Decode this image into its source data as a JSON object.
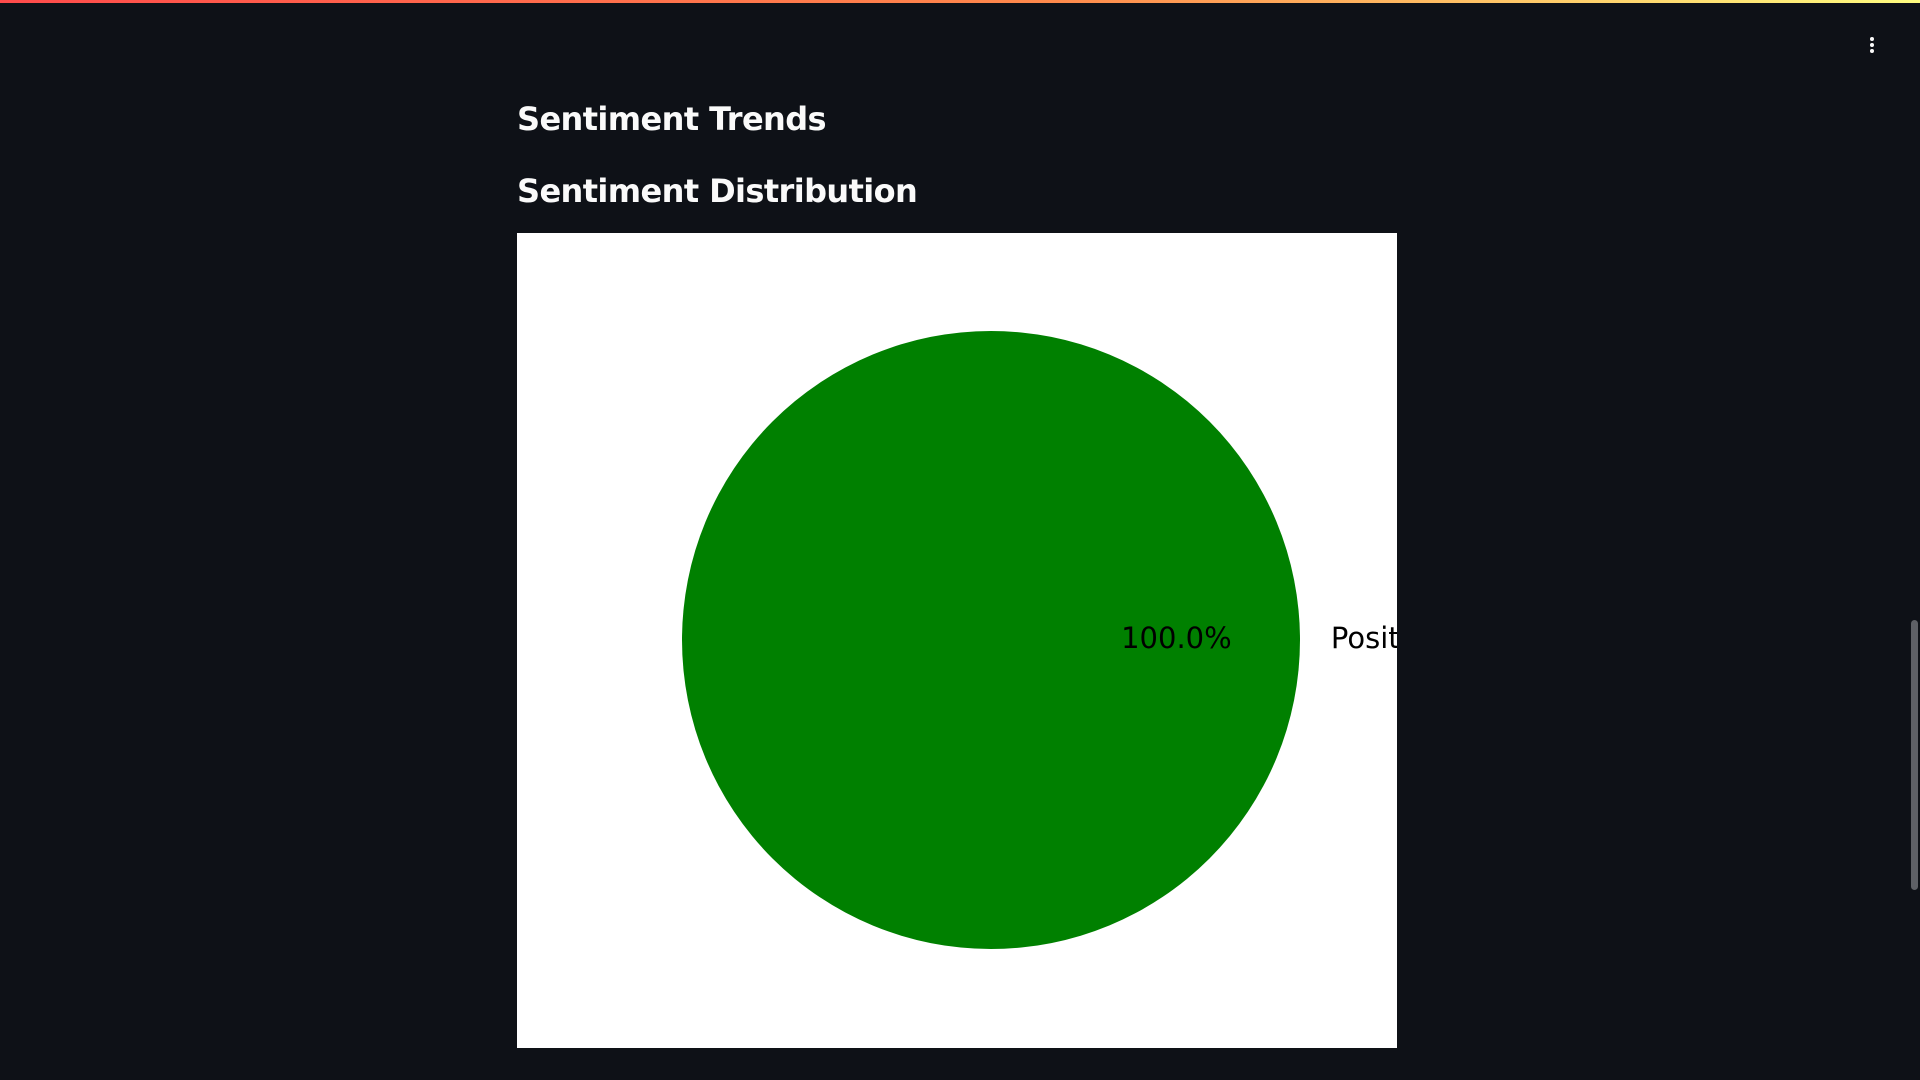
{
  "headings": {
    "trends": "Sentiment Trends",
    "distribution": "Sentiment Distribution"
  },
  "toolbar": {
    "menu_icon": "kebab-vertical-icon"
  },
  "theme": {
    "background": "#0e1117",
    "text": "#fafafa",
    "chart_background": "#ffffff"
  },
  "chart_data": {
    "type": "pie",
    "labels": [
      "Positive"
    ],
    "values": [
      100.0
    ],
    "value_labels": [
      "100.0%"
    ],
    "colors": [
      "#008000"
    ]
  }
}
